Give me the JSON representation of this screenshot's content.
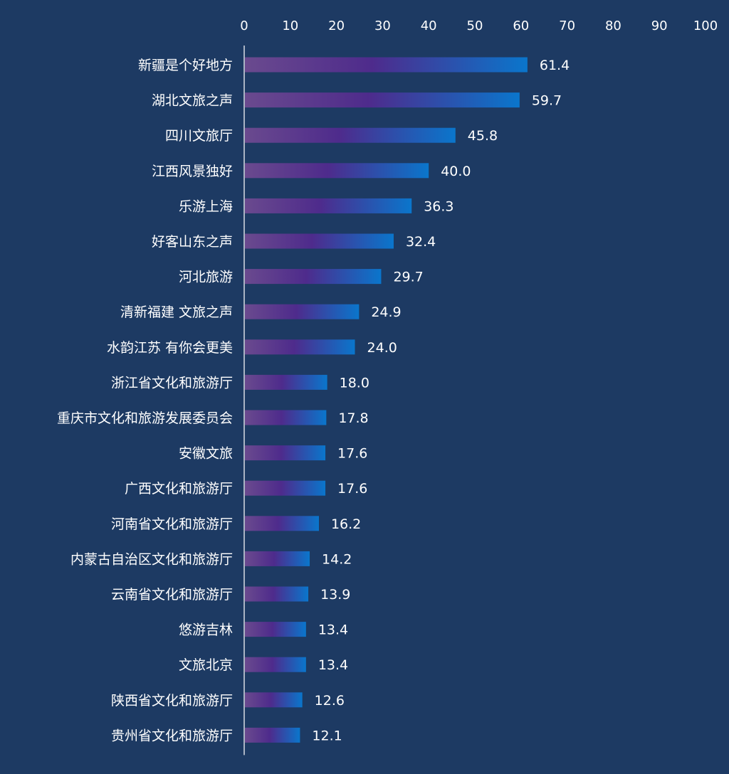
{
  "chart_data": {
    "type": "bar",
    "orientation": "horizontal",
    "categories": [
      "新疆是个好地方",
      "湖北文旅之声",
      "四川文旅厅",
      "江西风景独好",
      "乐游上海",
      "好客山东之声",
      "河北旅游",
      "清新福建 文旅之声",
      "水韵江苏 有你会更美",
      "浙江省文化和旅游厅",
      "重庆市文化和旅游发展委员会",
      "安徽文旅",
      "广西文化和旅游厅",
      "河南省文化和旅游厅",
      "内蒙古自治区文化和旅游厅",
      "云南省文化和旅游厅",
      "悠游吉林",
      "文旅北京",
      "陕西省文化和旅游厅",
      "贵州省文化和旅游厅"
    ],
    "values": [
      61.4,
      59.7,
      45.8,
      40.0,
      36.3,
      32.4,
      29.7,
      24.9,
      24.0,
      18.0,
      17.8,
      17.6,
      17.6,
      16.2,
      14.2,
      13.9,
      13.4,
      13.4,
      12.6,
      12.1
    ],
    "value_labels": [
      "61.4",
      "59.7",
      "45.8",
      "40.0",
      "36.3",
      "32.4",
      "29.7",
      "24.9",
      "24.0",
      "18.0",
      "17.8",
      "17.6",
      "17.6",
      "16.2",
      "14.2",
      "13.9",
      "13.4",
      "13.4",
      "12.6",
      "12.1"
    ],
    "xlim": [
      0,
      100
    ],
    "x_ticks": [
      "0",
      "10",
      "20",
      "30",
      "40",
      "50",
      "60",
      "70",
      "80",
      "90",
      "100"
    ],
    "x_axis_position": "top",
    "grid": false,
    "legend": "none",
    "title": "",
    "xlabel": "",
    "ylabel": ""
  },
  "colors": {
    "background": "#1d3a63",
    "bar_start": "#6a4a8e",
    "bar_mid": "#4e2b8c",
    "bar_end": "#0a76cc",
    "axis_line": "#d9dde5",
    "text": "#ffffff"
  }
}
